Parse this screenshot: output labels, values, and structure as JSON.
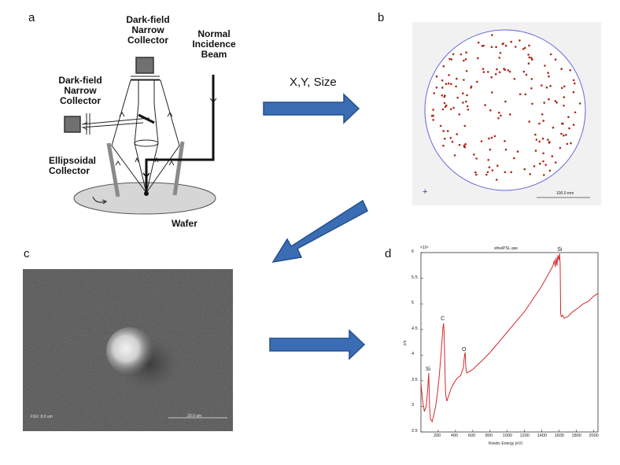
{
  "panels": {
    "a": {
      "letter": "a",
      "top_collector": "Dark-field\nNarrow\nCollector",
      "beam": "Normal\nIncidence\nBeam",
      "side_collector": "Dark-field\nNarrow\nCollector",
      "ellipsoidal": "Ellipsoidal\nCollector",
      "wafer": "Wafer"
    },
    "b": {
      "letter": "b",
      "scale_label": "100.0 mm"
    },
    "c": {
      "letter": "c",
      "left_caption": "FSX: 8.0 um",
      "scale_label": "20.0 um"
    },
    "d": {
      "letter": "d",
      "title": "shiwiPSL.spe",
      "exponent": "×10⁴",
      "y_label": "c/s",
      "x_label": "Kinetic Energy (eV)"
    }
  },
  "arrows": {
    "xy_size_label": "X,Y, Size"
  },
  "colors": {
    "arrow_fill": "#3a6db3",
    "arrow_stroke": "#23508f",
    "spectrum": "#d42a2a",
    "defect_dot": "#b0281b"
  },
  "chart_data": {
    "type": "line",
    "title": "shiwiPSL.spe",
    "xlabel": "Kinetic Energy (eV)",
    "ylabel": "c/s",
    "y_multiplier": "×10⁴",
    "xlim": [
      0,
      2050
    ],
    "ylim": [
      2.5,
      6
    ],
    "x_ticks": [
      200,
      400,
      600,
      800,
      1000,
      1200,
      1400,
      1600,
      1800,
      2000
    ],
    "y_ticks": [
      2.5,
      3,
      3.5,
      4,
      4.5,
      5,
      5.5,
      6
    ],
    "peak_labels": [
      {
        "text": "Si",
        "x": 90,
        "y": 3.62
      },
      {
        "text": "C",
        "x": 265,
        "y": 4.6
      },
      {
        "text": "O",
        "x": 510,
        "y": 4.0
      },
      {
        "text": "Si",
        "x": 1615,
        "y": 5.95
      }
    ],
    "series": [
      {
        "x": [
          0,
          20,
          40,
          60,
          75,
          90,
          100,
          110,
          130,
          150,
          170,
          190,
          210,
          230,
          245,
          255,
          262,
          268,
          275,
          285,
          300,
          320,
          350,
          380,
          420,
          460,
          490,
          505,
          512,
          520,
          530,
          560,
          600,
          700,
          800,
          900,
          1000,
          1100,
          1200,
          1300,
          1400,
          1450,
          1500,
          1530,
          1545,
          1555,
          1565,
          1575,
          1585,
          1595,
          1605,
          1612,
          1618,
          1625,
          1640,
          1660,
          1700,
          1760,
          1820,
          1880,
          1940,
          2000,
          2050
        ],
        "y": [
          3.45,
          3.1,
          2.9,
          3.0,
          3.25,
          3.65,
          3.0,
          2.75,
          2.7,
          2.85,
          3.0,
          3.25,
          3.55,
          3.95,
          4.3,
          4.55,
          4.62,
          4.45,
          3.9,
          3.25,
          3.1,
          3.2,
          3.35,
          3.45,
          3.55,
          3.6,
          3.75,
          4.0,
          4.05,
          3.75,
          3.65,
          3.68,
          3.72,
          3.88,
          4.05,
          4.25,
          4.45,
          4.65,
          4.85,
          5.1,
          5.35,
          5.5,
          5.65,
          5.75,
          5.85,
          5.72,
          5.9,
          5.75,
          5.95,
          5.85,
          5.98,
          5.8,
          4.8,
          4.75,
          4.78,
          4.72,
          4.75,
          4.85,
          4.92,
          5.0,
          5.05,
          5.15,
          5.2
        ]
      }
    ]
  }
}
